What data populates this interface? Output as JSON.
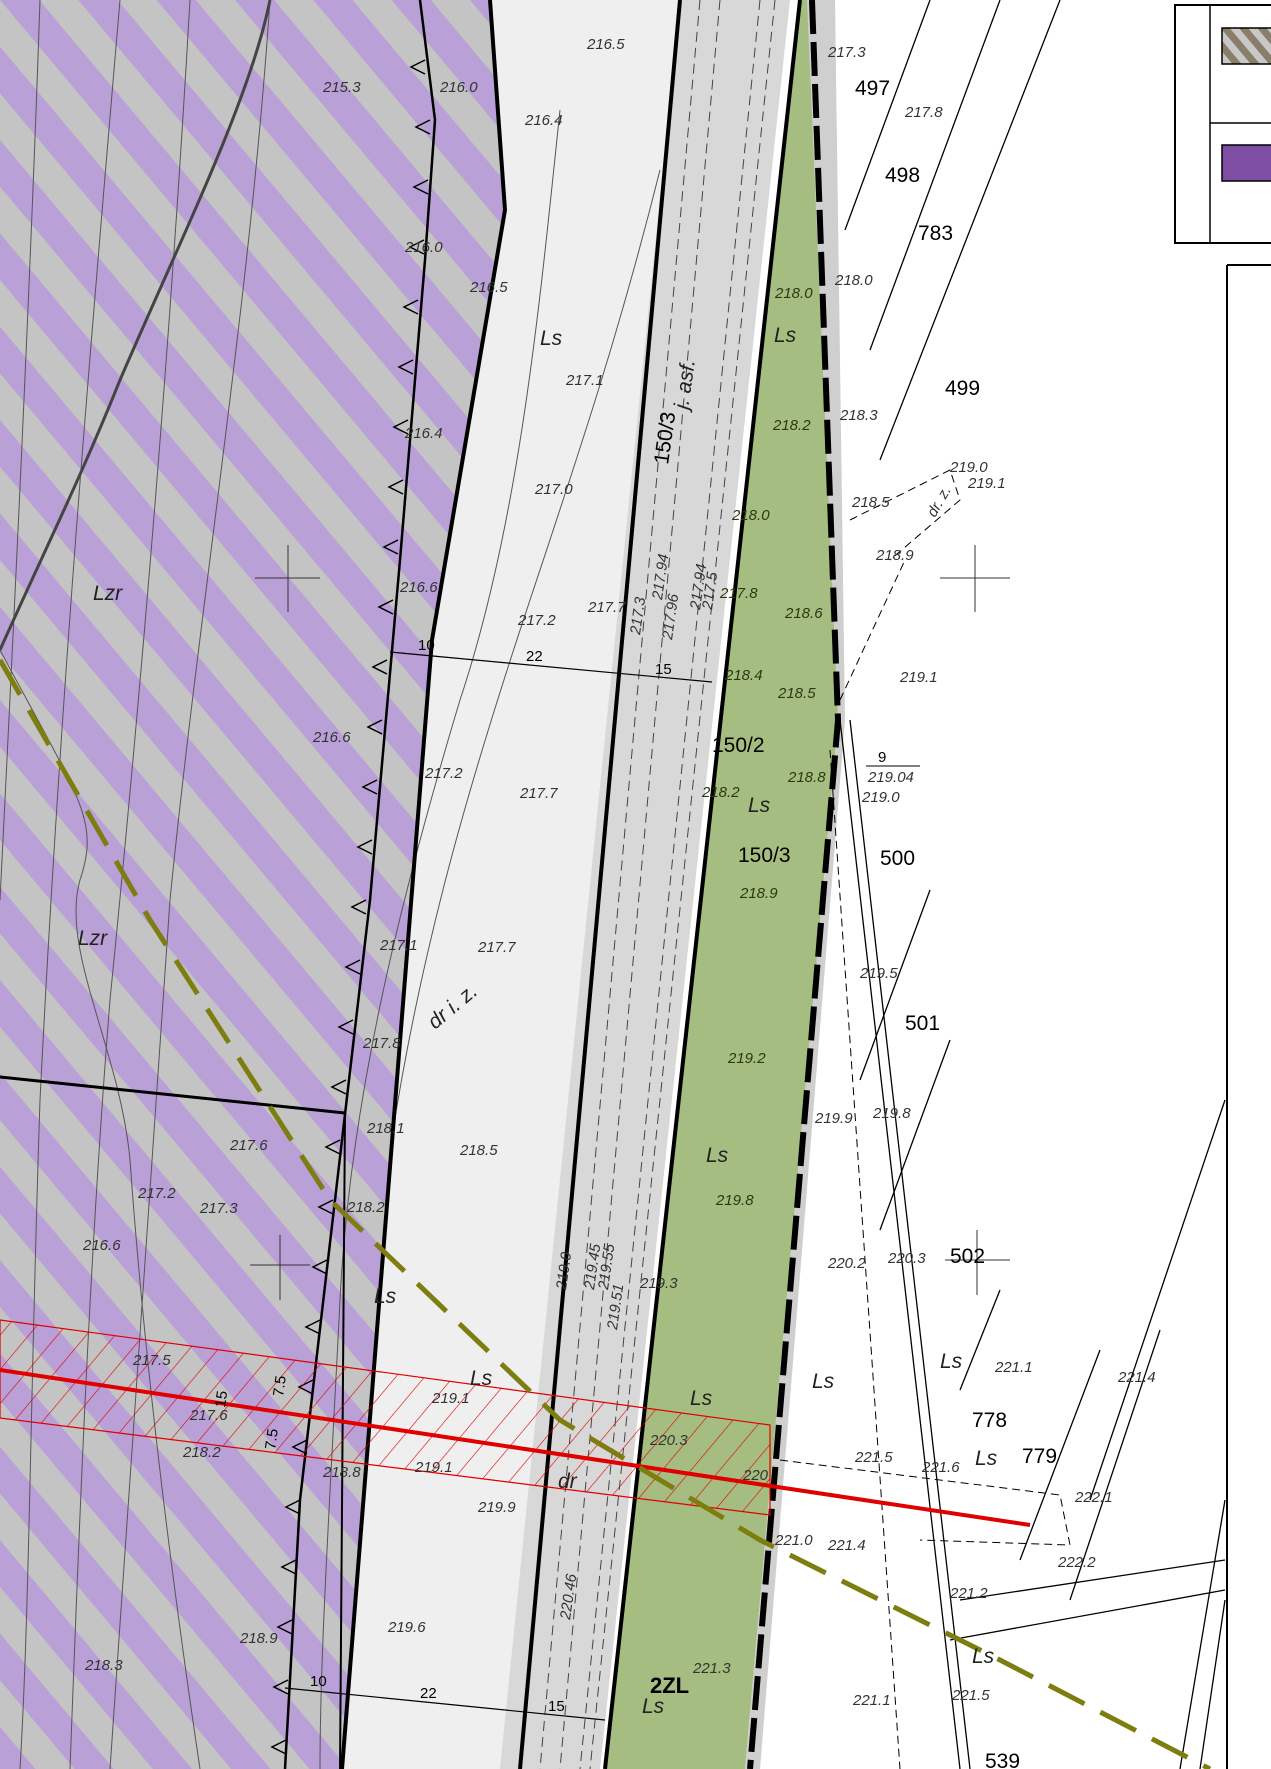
{
  "colors": {
    "forest_hatch_purple": "#b9a0d6",
    "forest_hatch_grey": "#c4c4c4",
    "road_light": "#efefef",
    "road_grey": "#d8d8d8",
    "green_zone": "#a5bd80",
    "line_red": "#e00000",
    "dashed_olive": "#7d7d10",
    "legend_brown": "#8a7d6a",
    "legend_purple": "#7d4ea3"
  },
  "zone_label": "2ZL",
  "parcels": [
    {
      "id": "p497",
      "text": "497"
    },
    {
      "id": "p498",
      "text": "498"
    },
    {
      "id": "p783",
      "text": "783"
    },
    {
      "id": "p499",
      "text": "499"
    },
    {
      "id": "p500",
      "text": "500"
    },
    {
      "id": "p501",
      "text": "501"
    },
    {
      "id": "p502",
      "text": "502"
    },
    {
      "id": "p778",
      "text": "778"
    },
    {
      "id": "p779",
      "text": "779"
    },
    {
      "id": "p539",
      "text": "539"
    },
    {
      "id": "p150_3a",
      "text": "150/3"
    },
    {
      "id": "p150_2",
      "text": "150/2"
    },
    {
      "id": "p150_3b",
      "text": "150/3"
    },
    {
      "id": "p9",
      "text": "9"
    },
    {
      "id": "p219_04",
      "text": "219.04"
    }
  ],
  "land_labels": [
    {
      "id": "lzr1",
      "text": "Lzr"
    },
    {
      "id": "lzr2",
      "text": "Lzr"
    },
    {
      "id": "ls1",
      "text": "Ls"
    },
    {
      "id": "ls2",
      "text": "Ls"
    },
    {
      "id": "ls3",
      "text": "Ls"
    },
    {
      "id": "ls4",
      "text": "Ls"
    },
    {
      "id": "ls5",
      "text": "Ls"
    },
    {
      "id": "ls6",
      "text": "Ls"
    },
    {
      "id": "ls7",
      "text": "Ls"
    },
    {
      "id": "ls8",
      "text": "Ls"
    },
    {
      "id": "ls9",
      "text": "Ls"
    },
    {
      "id": "ls10",
      "text": "Ls"
    },
    {
      "id": "ls11",
      "text": "Ls"
    },
    {
      "id": "ls12",
      "text": "Ls"
    },
    {
      "id": "dr1",
      "text": "dr i. z."
    },
    {
      "id": "dr2",
      "text": "dr"
    },
    {
      "id": "jasf",
      "text": "j. asf."
    },
    {
      "id": "drz",
      "text": "dr. z."
    }
  ],
  "dimensions": [
    {
      "id": "d10a",
      "text": "10"
    },
    {
      "id": "d22a",
      "text": "22"
    },
    {
      "id": "d15a",
      "text": "15"
    },
    {
      "id": "d10b",
      "text": "10"
    },
    {
      "id": "d22b",
      "text": "22"
    },
    {
      "id": "d15b",
      "text": "15"
    },
    {
      "id": "d75a",
      "text": "7.5"
    },
    {
      "id": "d75b",
      "text": "7.5"
    },
    {
      "id": "d15c",
      "text": "15"
    }
  ],
  "elevations": [
    "216.5",
    "216.4",
    "215.3",
    "216.0",
    "216.0",
    "216.5",
    "217.1",
    "216.4",
    "217.0",
    "216.6",
    "217.2",
    "217.7",
    "217.3",
    "217.96",
    "217.94",
    "217.94",
    "217.5",
    "216.6",
    "217.2",
    "217.7",
    "217.1",
    "217.7",
    "217.8",
    "218.1",
    "217.6",
    "217.2",
    "217.3",
    "216.6",
    "218.2",
    "218.5",
    "219.0",
    "219.45",
    "219.55",
    "219.51",
    "219.3",
    "219.1",
    "219.1",
    "219.9",
    "218.8",
    "218.2",
    "217.6",
    "217.5",
    "220.3",
    "220",
    "221.0",
    "220.46",
    "219.6",
    "218.9",
    "218.3",
    "221.3",
    "217.3",
    "217.8",
    "218.0",
    "218.3",
    "218.5",
    "219.0",
    "219.1",
    "218.9",
    "219.1",
    "219.0",
    "219.5",
    "219.8",
    "219.9",
    "220.2",
    "220.3",
    "221.1",
    "221.4",
    "221.5",
    "221.6",
    "222.1",
    "221.4",
    "222.2",
    "221.2",
    "221.5",
    "221.1",
    "218.0",
    "218.2",
    "218.0",
    "217.8",
    "218.6",
    "218.4",
    "218.5",
    "218.8",
    "218.2",
    "218.9",
    "219.2",
    "219.8",
    "219.3"
  ],
  "line_markers": [
    "N",
    "N",
    "N",
    "N",
    "N"
  ],
  "legend": {
    "swatches": [
      {
        "color": "#8a7d6a"
      },
      {
        "color": "#7d4ea3"
      }
    ]
  }
}
